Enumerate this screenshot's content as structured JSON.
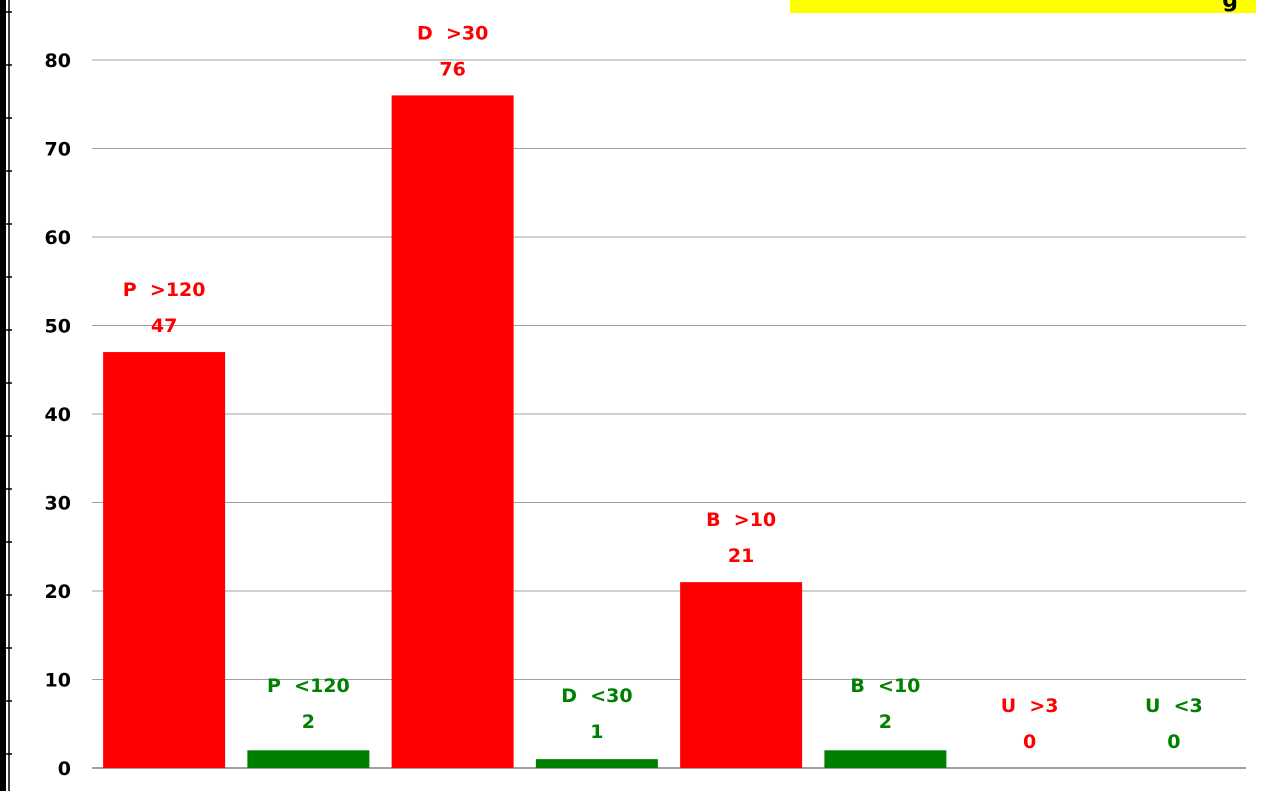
{
  "banner": {
    "visible_text": "g",
    "color": "#ffff00"
  },
  "chart_data": {
    "type": "bar",
    "ylim": [
      0,
      80
    ],
    "yticks": [
      0,
      10,
      20,
      30,
      40,
      50,
      60,
      70,
      80
    ],
    "grid": true,
    "bars": [
      {
        "label": "P  >120",
        "value": 47,
        "color": "#ff0000",
        "label_color": "#ff0000"
      },
      {
        "label": "P  <120",
        "value": 2,
        "color": "#008000",
        "label_color": "#008000"
      },
      {
        "label": "D  >30",
        "value": 76,
        "color": "#ff0000",
        "label_color": "#ff0000"
      },
      {
        "label": "D  <30",
        "value": 1,
        "color": "#008000",
        "label_color": "#008000"
      },
      {
        "label": "B  >10",
        "value": 21,
        "color": "#ff0000",
        "label_color": "#ff0000"
      },
      {
        "label": "B  <10",
        "value": 2,
        "color": "#008000",
        "label_color": "#008000"
      },
      {
        "label": "U  >3",
        "value": 0,
        "color": "#ff0000",
        "label_color": "#ff0000"
      },
      {
        "label": "U  <3",
        "value": 0,
        "color": "#008000",
        "label_color": "#008000"
      }
    ]
  }
}
